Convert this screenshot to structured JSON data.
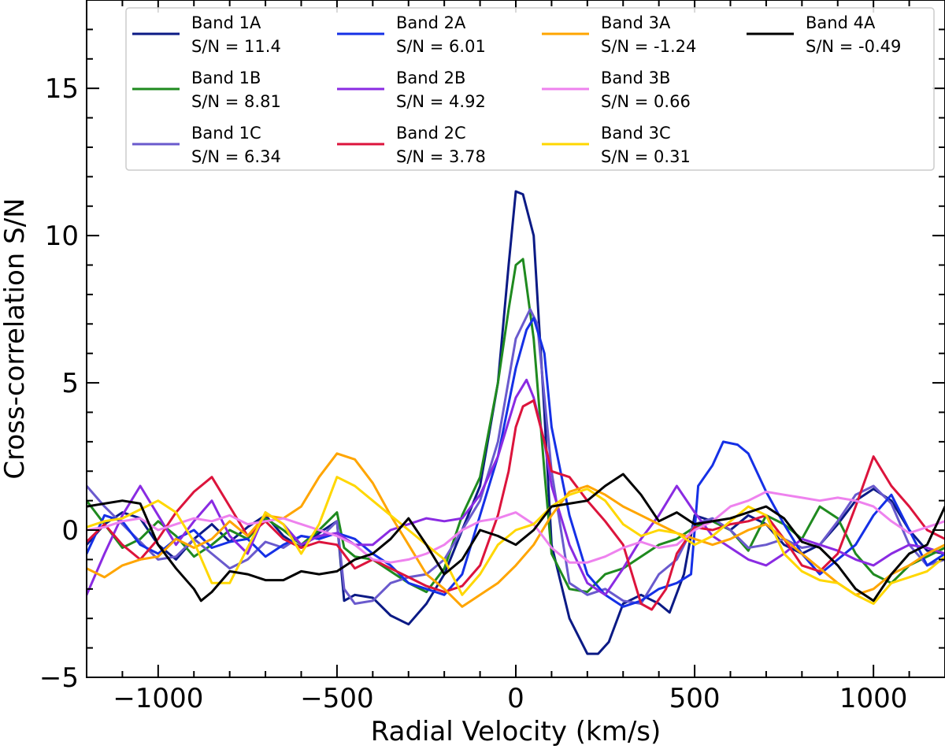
{
  "chart_data": {
    "type": "line",
    "title": "",
    "xlabel": "Radial Velocity (km/s)",
    "ylabel": "Cross-correlation S/N",
    "xlim": [
      -1200,
      1200
    ],
    "ylim": [
      -5,
      18
    ],
    "xticks": [
      {
        "value": -1000,
        "label": "−1000"
      },
      {
        "value": -500,
        "label": "−500"
      },
      {
        "value": 0,
        "label": "0"
      },
      {
        "value": 500,
        "label": "500"
      },
      {
        "value": 1000,
        "label": "1000"
      }
    ],
    "yticks": [
      {
        "value": -5,
        "label": "−5"
      },
      {
        "value": 0,
        "label": "0"
      },
      {
        "value": 5,
        "label": "5"
      },
      {
        "value": 10,
        "label": "10"
      },
      {
        "value": 15,
        "label": "15"
      }
    ],
    "legend_position": "top",
    "series": [
      {
        "name": "Band 1A",
        "sn_label": "S/N = 11.4",
        "color": "#0b1a85",
        "x": [
          -1200,
          -1150,
          -1100,
          -1050,
          -1000,
          -950,
          -900,
          -850,
          -800,
          -750,
          -700,
          -650,
          -600,
          -550,
          -500,
          -480,
          -450,
          -400,
          -350,
          -300,
          -250,
          -200,
          -150,
          -100,
          -50,
          -20,
          0,
          20,
          50,
          80,
          100,
          150,
          200,
          230,
          260,
          300,
          350,
          400,
          430,
          470,
          500,
          550,
          600,
          650,
          700,
          750,
          800,
          850,
          900,
          950,
          1000,
          1050,
          1100,
          1150,
          1200
        ],
        "y": [
          -0.5,
          0.2,
          0.6,
          0.4,
          -0.5,
          -1.0,
          -0.3,
          0.2,
          -0.4,
          0.1,
          0.5,
          -0.2,
          -0.6,
          -0.1,
          0.3,
          -2.4,
          -2.2,
          -2.3,
          -2.9,
          -3.2,
          -2.5,
          -1.5,
          0.0,
          1.5,
          5.0,
          9.0,
          11.5,
          11.4,
          10.0,
          4.0,
          -0.5,
          -3.0,
          -4.2,
          -4.2,
          -3.8,
          -2.5,
          -2.2,
          -2.5,
          -2.8,
          -1.5,
          0.5,
          0.3,
          0.0,
          0.5,
          0.2,
          -0.5,
          -0.8,
          -0.5,
          0.2,
          1.0,
          1.4,
          1.0,
          0.0,
          -0.7,
          -0.8
        ]
      },
      {
        "name": "Band 1B",
        "sn_label": "S/N = 8.81",
        "color": "#1f8a1f",
        "x": [
          -1200,
          -1150,
          -1100,
          -1050,
          -1000,
          -950,
          -900,
          -850,
          -800,
          -750,
          -700,
          -650,
          -600,
          -550,
          -500,
          -480,
          -450,
          -400,
          -350,
          -300,
          -250,
          -200,
          -150,
          -100,
          -50,
          -20,
          0,
          20,
          50,
          80,
          100,
          150,
          200,
          250,
          300,
          350,
          400,
          450,
          500,
          550,
          600,
          650,
          700,
          750,
          800,
          850,
          900,
          950,
          1000,
          1050,
          1100,
          1150,
          1200
        ],
        "y": [
          1.0,
          0.2,
          -0.6,
          -0.3,
          0.3,
          -0.2,
          -0.9,
          -0.5,
          0.0,
          -0.3,
          0.4,
          0.0,
          -0.5,
          0.0,
          0.6,
          -0.6,
          -0.9,
          -1.0,
          -1.4,
          -1.8,
          -2.1,
          -1.3,
          0.5,
          1.8,
          5.0,
          7.5,
          9.0,
          9.2,
          6.5,
          2.0,
          -0.8,
          -2.0,
          -2.1,
          -1.5,
          -1.3,
          -0.9,
          -0.5,
          -0.3,
          0.1,
          0.3,
          0.0,
          -0.7,
          0.5,
          0.2,
          -0.3,
          0.8,
          0.4,
          -0.8,
          -1.5,
          -1.8,
          -1.2,
          -0.9,
          -0.6
        ]
      },
      {
        "name": "Band 1C",
        "sn_label": "S/N = 6.34",
        "color": "#6a5acd",
        "x": [
          -1200,
          -1150,
          -1100,
          -1050,
          -1000,
          -950,
          -900,
          -850,
          -800,
          -750,
          -700,
          -650,
          -600,
          -550,
          -500,
          -480,
          -450,
          -400,
          -350,
          -300,
          -250,
          -200,
          -150,
          -100,
          -50,
          0,
          40,
          60,
          100,
          150,
          200,
          250,
          300,
          350,
          400,
          450,
          500,
          550,
          600,
          650,
          700,
          750,
          800,
          850,
          900,
          950,
          1000,
          1050,
          1100,
          1150,
          1200
        ],
        "y": [
          1.5,
          0.8,
          0.2,
          -0.4,
          -1.0,
          -0.9,
          -0.3,
          -0.8,
          -1.3,
          -1.0,
          -0.4,
          -0.6,
          -0.2,
          -0.3,
          0.3,
          -2.0,
          -2.5,
          -2.4,
          -1.8,
          -1.6,
          -1.5,
          -1.0,
          0.0,
          1.0,
          3.0,
          6.5,
          7.5,
          7.0,
          2.0,
          -1.8,
          -2.2,
          -2.0,
          -2.4,
          -2.5,
          -1.5,
          -1.0,
          0.2,
          0.4,
          0.0,
          -0.6,
          -0.5,
          -0.3,
          -0.6,
          -0.5,
          0.3,
          1.2,
          1.5,
          0.9,
          -0.5,
          -1.2,
          -1.0
        ]
      },
      {
        "name": "Band 2A",
        "sn_label": "S/N = 6.01",
        "color": "#1530e6",
        "x": [
          -1200,
          -1150,
          -1100,
          -1050,
          -1000,
          -950,
          -900,
          -850,
          -800,
          -750,
          -700,
          -650,
          -600,
          -550,
          -500,
          -450,
          -400,
          -350,
          -300,
          -250,
          -200,
          -150,
          -100,
          -50,
          0,
          30,
          50,
          80,
          100,
          150,
          200,
          250,
          300,
          350,
          400,
          450,
          490,
          500,
          510,
          550,
          580,
          620,
          650,
          700,
          750,
          800,
          850,
          900,
          950,
          1000,
          1050,
          1100,
          1150,
          1200
        ],
        "y": [
          -0.8,
          0.5,
          0.3,
          -0.5,
          -0.8,
          -0.3,
          0.0,
          -0.6,
          -0.4,
          -0.3,
          -0.9,
          -0.5,
          -0.2,
          -0.3,
          -0.1,
          -0.3,
          -0.8,
          -1.2,
          -1.8,
          -2.0,
          -2.2,
          -1.5,
          0.5,
          2.5,
          5.5,
          6.8,
          7.2,
          6.0,
          3.5,
          0.5,
          -1.5,
          -2.2,
          -2.6,
          -2.4,
          -2.0,
          -1.8,
          -1.5,
          0.0,
          1.5,
          2.2,
          3.0,
          2.9,
          2.6,
          1.3,
          0.2,
          -0.8,
          -1.5,
          -1.0,
          -0.5,
          0.5,
          1.2,
          0.0,
          -1.2,
          -0.8
        ]
      },
      {
        "name": "Band 2B",
        "sn_label": "S/N = 4.92",
        "color": "#8a2be2",
        "x": [
          -1200,
          -1150,
          -1100,
          -1050,
          -1000,
          -950,
          -900,
          -850,
          -800,
          -750,
          -700,
          -650,
          -600,
          -550,
          -500,
          -450,
          -400,
          -350,
          -300,
          -250,
          -200,
          -150,
          -100,
          -50,
          0,
          30,
          50,
          80,
          100,
          150,
          200,
          250,
          300,
          350,
          400,
          450,
          500,
          550,
          600,
          650,
          700,
          750,
          800,
          850,
          900,
          950,
          1000,
          1050,
          1100,
          1150,
          1200
        ],
        "y": [
          -2.2,
          -0.8,
          0.5,
          1.5,
          0.5,
          -0.5,
          0.3,
          1.0,
          -0.2,
          -0.8,
          0.6,
          0.2,
          -0.5,
          -0.2,
          -0.1,
          -0.5,
          -0.5,
          0.0,
          0.2,
          0.4,
          0.3,
          0.4,
          1.2,
          2.5,
          4.5,
          5.1,
          4.5,
          3.0,
          1.5,
          -0.5,
          -1.8,
          -2.2,
          -1.3,
          -0.3,
          0.5,
          1.5,
          0.6,
          -0.2,
          -0.6,
          -1.0,
          -1.2,
          -0.8,
          -0.3,
          -0.5,
          -0.7,
          -1.0,
          -1.2,
          -0.8,
          -0.5,
          -0.6,
          -0.8
        ]
      },
      {
        "name": "Band 2C",
        "sn_label": "S/N = 3.78",
        "color": "#dc143c",
        "x": [
          -1200,
          -1150,
          -1100,
          -1050,
          -1000,
          -950,
          -900,
          -850,
          -800,
          -750,
          -700,
          -650,
          -600,
          -550,
          -500,
          -450,
          -400,
          -350,
          -300,
          -250,
          -200,
          -150,
          -100,
          -50,
          -20,
          0,
          20,
          50,
          80,
          100,
          150,
          200,
          250,
          300,
          350,
          380,
          420,
          450,
          500,
          550,
          600,
          650,
          700,
          750,
          800,
          850,
          900,
          950,
          1000,
          1050,
          1100,
          1150,
          1200
        ],
        "y": [
          -0.4,
          0.2,
          -0.5,
          -1.0,
          -0.3,
          0.6,
          1.3,
          1.8,
          0.8,
          -0.2,
          0.3,
          -0.3,
          -0.6,
          -0.4,
          -0.5,
          -1.3,
          -1.0,
          -1.3,
          -1.6,
          -1.9,
          -2.1,
          -1.9,
          -1.2,
          0.5,
          2.0,
          3.5,
          4.2,
          4.4,
          3.0,
          2.0,
          1.8,
          1.0,
          0.3,
          -0.5,
          -2.5,
          -2.7,
          -2.0,
          -0.8,
          0.1,
          0.0,
          0.2,
          0.3,
          0.5,
          -0.3,
          -1.2,
          -1.4,
          -0.8,
          0.8,
          2.5,
          1.5,
          0.8,
          0.0,
          -0.3
        ]
      },
      {
        "name": "Band 3A",
        "sn_label": "S/N = -1.24",
        "color": "#ffa500",
        "x": [
          -1200,
          -1150,
          -1100,
          -1050,
          -1000,
          -950,
          -900,
          -850,
          -800,
          -750,
          -700,
          -650,
          -600,
          -550,
          -500,
          -450,
          -400,
          -350,
          -300,
          -250,
          -200,
          -150,
          -100,
          -50,
          0,
          50,
          100,
          150,
          200,
          250,
          300,
          350,
          400,
          450,
          500,
          550,
          600,
          650,
          700,
          750,
          800,
          850,
          900,
          950,
          1000,
          1050,
          1100,
          1150,
          1200
        ],
        "y": [
          -1.3,
          -1.6,
          -1.2,
          -1.0,
          -0.9,
          -0.3,
          -0.6,
          -0.3,
          0.3,
          -0.2,
          0.5,
          0.4,
          0.8,
          1.8,
          2.6,
          2.4,
          1.6,
          0.5,
          -0.5,
          -1.5,
          -2.0,
          -2.6,
          -2.2,
          -1.8,
          -1.2,
          -0.5,
          0.5,
          1.3,
          1.5,
          1.2,
          0.8,
          0.5,
          0.2,
          -0.1,
          -0.3,
          -0.5,
          -0.3,
          0.0,
          0.2,
          -0.3,
          -0.8,
          -1.3,
          -1.8,
          -2.2,
          -2.0,
          -1.5,
          -1.2,
          -0.8,
          -0.5
        ]
      },
      {
        "name": "Band 3B",
        "sn_label": "S/N = 0.66",
        "color": "#ee82ee",
        "x": [
          -1200,
          -1150,
          -1100,
          -1050,
          -1000,
          -950,
          -900,
          -850,
          -800,
          -750,
          -700,
          -650,
          -600,
          -550,
          -500,
          -450,
          -400,
          -350,
          -300,
          -250,
          -200,
          -150,
          -100,
          -50,
          0,
          50,
          100,
          150,
          200,
          250,
          300,
          350,
          400,
          450,
          500,
          550,
          600,
          650,
          700,
          750,
          800,
          850,
          900,
          950,
          1000,
          1050,
          1100,
          1150,
          1200
        ],
        "y": [
          0.0,
          0.1,
          0.3,
          0.4,
          0.0,
          0.2,
          0.4,
          0.3,
          0.5,
          0.2,
          0.3,
          0.4,
          0.2,
          0.0,
          -0.2,
          -0.5,
          -1.0,
          -1.1,
          -1.0,
          -0.8,
          -0.5,
          0.0,
          0.3,
          0.4,
          0.6,
          0.2,
          -0.6,
          -1.1,
          -1.1,
          -0.9,
          -0.6,
          -0.4,
          -0.6,
          -0.5,
          0.0,
          0.3,
          0.8,
          1.0,
          1.3,
          1.2,
          1.1,
          1.0,
          1.1,
          1.0,
          0.8,
          0.3,
          -0.1,
          0.1,
          0.3
        ]
      },
      {
        "name": "Band 3C",
        "sn_label": "S/N = 0.31",
        "color": "#ffd700",
        "x": [
          -1200,
          -1150,
          -1100,
          -1050,
          -1000,
          -950,
          -900,
          -850,
          -800,
          -750,
          -700,
          -650,
          -600,
          -550,
          -500,
          -450,
          -400,
          -350,
          -300,
          -250,
          -200,
          -150,
          -100,
          -50,
          0,
          50,
          100,
          150,
          200,
          250,
          300,
          350,
          400,
          450,
          500,
          550,
          600,
          650,
          700,
          750,
          800,
          850,
          900,
          950,
          1000,
          1050,
          1100,
          1150,
          1200
        ],
        "y": [
          0.1,
          0.3,
          0.4,
          0.7,
          1.0,
          0.6,
          -0.4,
          -1.8,
          -1.8,
          -0.6,
          0.6,
          0.2,
          -0.8,
          0.2,
          1.8,
          1.5,
          1.0,
          0.5,
          0.0,
          -0.5,
          -1.0,
          -2.2,
          -1.5,
          -0.5,
          0.0,
          0.2,
          0.8,
          1.2,
          1.4,
          1.0,
          0.2,
          -0.2,
          0.0,
          -0.1,
          -0.5,
          -0.2,
          0.3,
          0.8,
          0.5,
          -0.8,
          -1.4,
          -1.7,
          -1.8,
          -2.2,
          -2.5,
          -1.8,
          -1.6,
          -1.4,
          -0.9
        ]
      },
      {
        "name": "Band 4A",
        "sn_label": "S/N = -0.49",
        "color": "#000000",
        "x": [
          -1200,
          -1150,
          -1100,
          -1050,
          -1000,
          -950,
          -900,
          -880,
          -850,
          -800,
          -750,
          -700,
          -650,
          -600,
          -550,
          -500,
          -450,
          -400,
          -350,
          -300,
          -250,
          -200,
          -150,
          -100,
          -50,
          0,
          50,
          100,
          150,
          200,
          250,
          300,
          350,
          400,
          450,
          500,
          550,
          600,
          650,
          700,
          750,
          800,
          850,
          900,
          950,
          1000,
          1050,
          1100,
          1150,
          1200
        ],
        "y": [
          0.8,
          0.9,
          1.0,
          0.9,
          -0.5,
          -1.3,
          -2.0,
          -2.4,
          -2.1,
          -1.4,
          -1.5,
          -1.7,
          -1.7,
          -1.4,
          -1.5,
          -1.4,
          -1.0,
          -0.8,
          -0.3,
          0.4,
          -0.5,
          -1.5,
          -1.0,
          0.0,
          -0.2,
          -0.5,
          0.0,
          0.8,
          0.9,
          1.0,
          1.5,
          1.9,
          1.2,
          0.3,
          0.6,
          0.2,
          0.3,
          0.4,
          0.6,
          0.8,
          0.4,
          -0.4,
          -0.6,
          -1.2,
          -2.0,
          -2.4,
          -1.5,
          -0.8,
          -0.5,
          0.8
        ]
      }
    ]
  }
}
